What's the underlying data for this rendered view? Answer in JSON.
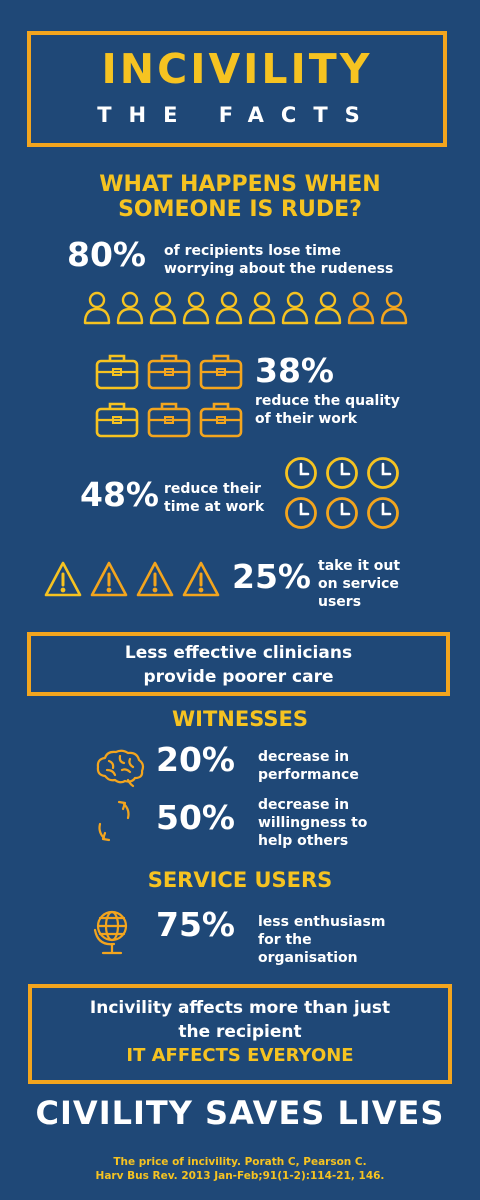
{
  "title": {
    "main": "INCIVILITY",
    "sub": "THE FACTS"
  },
  "question": {
    "line1": "WHAT HAPPENS WHEN",
    "line2": "SOMEONE IS RUDE?"
  },
  "stat_80": {
    "value": "80%",
    "line1": "of recipients lose time",
    "line2": "worrying about the rudeness"
  },
  "stat_38": {
    "value": "38%",
    "line1": "reduce the quality",
    "line2": "of their work"
  },
  "stat_48": {
    "value": "48%",
    "line1": "reduce their",
    "line2": "time at work"
  },
  "stat_25": {
    "value": "25%",
    "line1": "take it out",
    "line2": "on service",
    "line3": "users"
  },
  "box2": {
    "line1": "Less effective clinicians",
    "line2": "provide poorer care"
  },
  "witnesses": {
    "heading": "WITNESSES",
    "stat_20": {
      "value": "20%",
      "line1": "decrease in",
      "line2": "performance"
    },
    "stat_50": {
      "value": "50%",
      "line1": "decrease in",
      "line2": "willingness to",
      "line3": "help others"
    }
  },
  "service_users": {
    "heading": "SERVICE USERS",
    "stat_75": {
      "value": "75%",
      "line1": "less enthusiasm",
      "line2": "for the",
      "line3": "organisation"
    }
  },
  "box3": {
    "line1": "Incivility affects more than just",
    "line2": "the recipient",
    "line3": "IT AFFECTS EVERYONE"
  },
  "footer": {
    "title": "CIVILITY SAVES LIVES",
    "citation1": "The price of incivility. Porath C, Pearson C.",
    "citation2": "Harv Bus Rev. 2013 Jan-Feb;91(1-2):114-21, 146."
  },
  "colors": {
    "background": "#1f4877",
    "accent_yellow": "#f6c321",
    "accent_orange": "#f3a51e"
  },
  "icons": [
    "person-icon",
    "briefcase-icon",
    "clock-icon",
    "warning-icon",
    "brain-icon",
    "cycle-arrows-icon",
    "globe-icon"
  ]
}
